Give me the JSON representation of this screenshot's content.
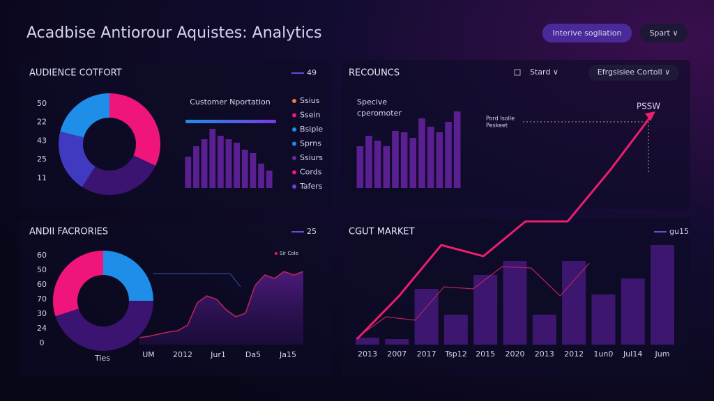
{
  "header": {
    "title": "Acadbise Antiorour Aquistes: Analytics",
    "button": "Interive sogliation",
    "dropdown": "Spart ∨"
  },
  "panels": [
    {
      "title": "AUDIENCE COTFORT",
      "badge": 49,
      "axis_labels": [
        50,
        22,
        43,
        25,
        11
      ],
      "donut": {
        "values": [
          32,
          27,
          20,
          21
        ],
        "colors": [
          "#f0157a",
          "#3a1470",
          "#3f3ac0",
          "#1e8ee8"
        ]
      },
      "subtitle": "Customer Nportation",
      "bars": {
        "color": "#5a1f90",
        "values": [
          45,
          60,
          70,
          85,
          75,
          70,
          65,
          55,
          50,
          35,
          25
        ]
      },
      "legend": [
        {
          "name": "Ssius",
          "color": "#f07a3a"
        },
        {
          "name": "Ssein",
          "color": "#f0157a"
        },
        {
          "name": "Bsiple",
          "color": "#1e8ee8"
        },
        {
          "name": "Sprns",
          "color": "#1e8ee8"
        },
        {
          "name": "Ssiurs",
          "color": "#6a2aa0"
        },
        {
          "name": "Cords",
          "color": "#f0157a"
        },
        {
          "name": "Tafers",
          "color": "#7a3ae0"
        }
      ]
    },
    {
      "title": "RECOUNCS",
      "control": "Stard ∨",
      "dropdown": "Efrgsisiee Cortoll ∨",
      "subtitle_lines": [
        "Specive",
        "cperomoter"
      ],
      "bars": {
        "color": "#5a1f90",
        "values": [
          60,
          75,
          68,
          60,
          82,
          80,
          72,
          100,
          88,
          80,
          95,
          110
        ]
      },
      "annotation": [
        "Pord Isolle",
        "Peskeet"
      ],
      "callout": "PSSW"
    },
    {
      "title": "ANDII FACRORIES",
      "badge": 25,
      "axis_labels": [
        60,
        50,
        60,
        70,
        30,
        24,
        0
      ],
      "donut": {
        "values": [
          25,
          45,
          30
        ],
        "colors": [
          "#1e8ee8",
          "#3a1470",
          "#f0157a"
        ]
      },
      "area": {
        "color": "#c0245e",
        "values": [
          10,
          12,
          15,
          18,
          20,
          28,
          60,
          70,
          65,
          50,
          40,
          45,
          85,
          100,
          95,
          105,
          100,
          105
        ]
      },
      "series_label": "Sir Cole",
      "x_labels": [
        "Ties",
        "UM",
        "2012",
        "Jur1",
        "Da5",
        "Ja15"
      ]
    },
    {
      "title": "CGUT MARKET",
      "badge": "gu15",
      "x_labels": [
        "2013",
        "2007",
        "2017",
        "Tsp12",
        "2015",
        "2020",
        "2013",
        "2012",
        "1un0",
        "JuI14",
        "Jum"
      ],
      "bars": {
        "color": "#3d1670",
        "values": [
          10,
          8,
          80,
          43,
          100,
          120,
          43,
          120,
          72,
          95,
          143
        ]
      },
      "lines": [
        {
          "color": "#ec1f6e",
          "values": [
            8,
            70,
            143,
            127,
            177,
            177,
            250,
            330
          ]
        },
        {
          "color": "#b8245c",
          "values": [
            10,
            40,
            35,
            83,
            80,
            112,
            110,
            70,
            117
          ]
        }
      ]
    }
  ]
}
